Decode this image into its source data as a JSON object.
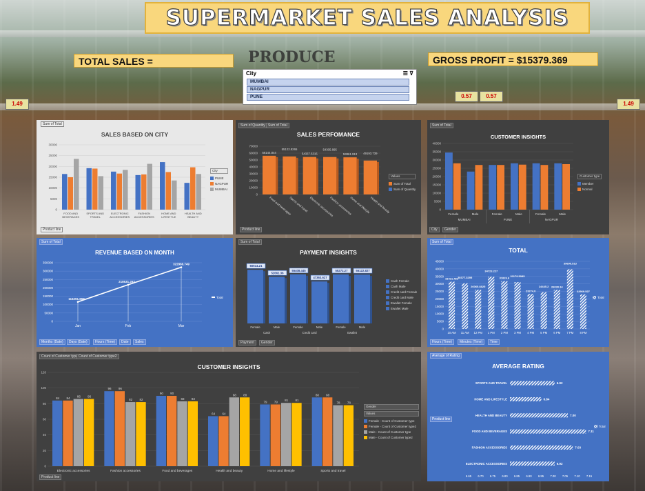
{
  "header": {
    "title": "SUPERMARKET SALES ANALYSIS",
    "total_sales_label": "TOTAL SALES =",
    "gross_profit_label": "GROSS PROFIT = $15379.369"
  },
  "background": {
    "sign": "PRODUCE",
    "price_tags": [
      "1.49",
      "0.57",
      "0.57",
      "1.49"
    ]
  },
  "slicer": {
    "title": "City",
    "items": [
      "MUMBAI",
      "NAGPUR",
      "PUNE"
    ]
  },
  "colors": {
    "blue": "#4472c4",
    "orange": "#ed7d31",
    "gray": "#a5a5a5",
    "yellow": "#ffc000",
    "panel_dark": "#404040",
    "panel_blue": "#4472c4",
    "panel_light": "#e8e8e8"
  },
  "charts": {
    "city": {
      "title": "SALES BASED ON CITY",
      "field_chip": "Sum of Total",
      "filter_chip": "Product line",
      "legend_header": "City",
      "chart_data": {
        "type": "bar",
        "categories": [
          "FOOD AND BEVERAGES",
          "SPORTS AND TRAVEL",
          "ELECTRONIC ACCESSORIES",
          "FASHION ACCESSORIES",
          "HOME AND LIFESTYLE",
          "HEALTH AND BEAUTY"
        ],
        "series": [
          {
            "name": "PUNE",
            "values": [
              16500,
              19200,
              17600,
              16000,
              22000,
              12400
            ]
          },
          {
            "name": "NAGPUR",
            "values": [
              15000,
              19000,
              16700,
              16300,
              17400,
              19600
            ]
          },
          {
            "name": "MUMBAI",
            "values": [
              23500,
              15500,
              18400,
              21200,
              13500,
              16500
            ]
          }
        ],
        "ylim": [
          0,
          30000
        ],
        "yticks": [
          "0",
          "5000",
          "10000",
          "15000",
          "20000",
          "25000",
          "30000"
        ]
      }
    },
    "performance": {
      "title": "SALES PERFOMANCE",
      "chips": [
        "Sum of Quantity",
        "Sum of Total"
      ],
      "filter_chip": "Product line",
      "legend_header": "Values",
      "legend_items": [
        "Sum of Total",
        "Sum of Quantity"
      ],
      "chart_data": {
        "type": "bar",
        "categories": [
          "Food and beverages",
          "Sports and travel",
          "Electronic accessories",
          "Fashion accessories",
          "Home and lifestyle",
          "Health and beauty"
        ],
        "series": [
          {
            "name": "Sum of Total",
            "values": [
              56144.844,
              55122.8265,
              54337.5315,
              54305.895,
              53861.913,
              49193.739
            ]
          }
        ],
        "labels": [
          "56144.844",
          "55122.8265",
          "54337.5315",
          "54305.895",
          "53861.913",
          "49193.739"
        ],
        "ylim": [
          0,
          70000
        ],
        "yticks": [
          "0",
          "10000",
          "20000",
          "30000",
          "40000",
          "50000",
          "60000",
          "70000"
        ]
      }
    },
    "customer_top": {
      "title": "CUSTOMER INSIGHTS",
      "field_chip": "Sum of Total",
      "filter_chips": [
        "City",
        "Gender"
      ],
      "legend_header": "Customer type",
      "group_labels": [
        "MUMBAI",
        "PUNE",
        "NAGPUR"
      ],
      "chart_data": {
        "type": "bar",
        "categories": [
          "Female",
          "Male",
          "Female",
          "Male",
          "Female",
          "Male"
        ],
        "series": [
          {
            "name": "Member",
            "values": [
              34500,
              23000,
              27000,
              28000,
              28000,
              28000
            ]
          },
          {
            "name": "Normal",
            "values": [
              28000,
              27000,
              27000,
              27200,
              27000,
              27500
            ]
          }
        ],
        "ylim": [
          0,
          40000
        ],
        "yticks": [
          "0",
          "5000",
          "10000",
          "15000",
          "20000",
          "25000",
          "30000",
          "35000",
          "40000"
        ]
      }
    },
    "revenue": {
      "title": "REVENUE BASED ON MONTH",
      "field_chip": "Sum of Total",
      "filter_chips": [
        "Months (Date)",
        "Days (Date)",
        "Hours (Time)",
        "Date",
        "Sales"
      ],
      "legend": "Total",
      "chart_data": {
        "type": "line",
        "x": [
          "Jan",
          "Feb",
          "Mar"
        ],
        "values": [
          116291.868,
          218531.262,
          322966.749
        ],
        "labels": [
          "116291.868",
          "218531.262",
          "322966.749"
        ],
        "ylim": [
          0,
          350000
        ],
        "yticks": [
          "0",
          "50000",
          "100000",
          "150000",
          "200000",
          "250000",
          "300000",
          "350000"
        ]
      }
    },
    "payment": {
      "title": "PAYMENT INSIGHTS",
      "field_chip": "Sum of Total",
      "filter_chips": [
        "Payment",
        "Gender"
      ],
      "legend_items": [
        "Cash Female",
        "Cash Male",
        "Credit card Female",
        "Credit card Male",
        "Ewallet Female",
        "Ewallet Male"
      ],
      "group_labels": [
        "Cash",
        "Credit card",
        "Ewallet"
      ],
      "chart_data": {
        "type": "bar",
        "categories": [
          "Female",
          "Male",
          "Female",
          "Male",
          "Female",
          "Male"
        ],
        "values": [
          60514.21,
          52661.36,
          55408.445,
          47363.627,
          55272.27,
          55122.827
        ],
        "labels": [
          "60514.21",
          "52661.36",
          "55408.445",
          "47363.627",
          "55272.27",
          "55122.827"
        ],
        "ylim": [
          0,
          70000
        ]
      }
    },
    "total_hour": {
      "title": "TOTAL",
      "field_chip": "Sum of Total",
      "filter_chips": [
        "Hours (Time)",
        "Minutes (Time)",
        "Time"
      ],
      "legend": "Total",
      "chart_data": {
        "type": "bar",
        "categories": [
          "10 AM",
          "11 AM",
          "12 PM",
          "1 PM",
          "2 PM",
          "3 PM",
          "4 PM",
          "5 PM",
          "6 PM",
          "7 PM",
          "8 PM"
        ],
        "values": [
          31421.481,
          30377.3295,
          26065.8825,
          34723.227,
          31826.6,
          31179.5085,
          23274.0,
          24445.2,
          26030.34,
          39699.513,
          22969.527
        ],
        "labels": [
          "31421.481",
          "30377.3295",
          "26065.8825",
          "34723.227",
          "31826.6",
          "31179.5085",
          "23274.0",
          "24445.2",
          "26030.34",
          "39699.513",
          "22969.527"
        ],
        "ylim": [
          0,
          45000
        ],
        "yticks": [
          "0",
          "5000",
          "10000",
          "15000",
          "20000",
          "25000",
          "30000",
          "35000",
          "40000",
          "45000"
        ]
      }
    },
    "customer_bottom": {
      "title": "CUSTOMER INSIGHTS",
      "field_chips": [
        "Count of Customer type",
        "Count of Customer type2"
      ],
      "filter_chip": "Product line",
      "legend_headers": [
        "Gender",
        "Values"
      ],
      "legend_items": [
        "Female - Count of Customer type",
        "Female - Count of Customer type2",
        "Male - Count of Customer type",
        "Male - Count of Customer type2"
      ],
      "chart_data": {
        "type": "bar",
        "categories": [
          "Electronic accessories",
          "Fashion accessories",
          "Food and beverages",
          "Health and beauty",
          "Home and lifestyle",
          "Sports and travel"
        ],
        "series": [
          {
            "name": "Female - Count of Customer type",
            "values": [
              84,
              96,
              90,
              64,
              79,
              88
            ]
          },
          {
            "name": "Female - Count of Customer type2",
            "values": [
              84,
              96,
              90,
              64,
              79,
              88
            ]
          },
          {
            "name": "Male - Count of Customer type",
            "values": [
              86,
              82,
              83,
              88,
              81,
              78
            ]
          },
          {
            "name": "Male - Count of Customer type2",
            "values": [
              86,
              82,
              83,
              88,
              81,
              78
            ]
          }
        ],
        "ylim": [
          0,
          120
        ],
        "yticks": [
          "0",
          "20",
          "40",
          "60",
          "80",
          "100",
          "120"
        ]
      }
    },
    "rating": {
      "title": "AVERAGE RATING",
      "field_chip": "Average of Rating",
      "filter_chip": "Product line",
      "legend": "Total",
      "chart_data": {
        "type": "bar",
        "categories": [
          "SPORTS AND TRAVEL",
          "HOME AND LIFESTYLE",
          "HEALTH AND BEAUTY",
          "FOOD AND BEVERAGES",
          "FASHION ACCESSORIES",
          "ELECTRONIC ACCESSORIES"
        ],
        "values": [
          6.92,
          6.84,
          7.0,
          7.11,
          7.03,
          6.92
        ],
        "labels": [
          "6.92",
          "6.84",
          "7.00",
          "7.11",
          "7.03",
          "6.92"
        ],
        "xlim": [
          6.65,
          7.15
        ],
        "xticks": [
          "6.65",
          "6.70",
          "6.75",
          "6.80",
          "6.85",
          "6.90",
          "6.95",
          "7.00",
          "7.05",
          "7.10",
          "7.15"
        ]
      }
    }
  }
}
